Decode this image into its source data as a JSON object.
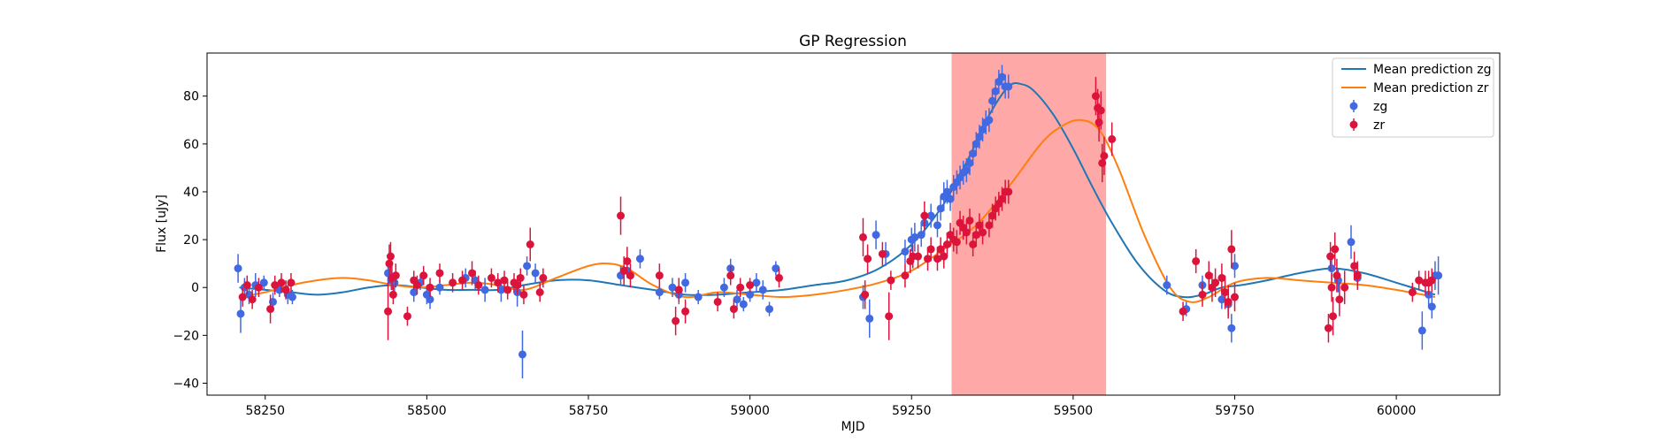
{
  "chart_data": {
    "type": "scatter",
    "title": "GP Regression",
    "xlabel": "MJD",
    "ylabel": "Flux [uJy]",
    "xlim": [
      58160,
      60160
    ],
    "ylim": [
      -45,
      98
    ],
    "xticks": [
      58250,
      58500,
      58750,
      59000,
      59250,
      59500,
      59750,
      60000
    ],
    "yticks": [
      -40,
      -20,
      0,
      20,
      40,
      60,
      80
    ],
    "grid": false,
    "legend_position": "top-right",
    "shaded_region": {
      "x_start": 59312,
      "x_end": 59551,
      "color": "#ff9999"
    },
    "series": [
      {
        "name": "Mean prediction zg",
        "kind": "line",
        "color": "#1f77b4",
        "x": [
          58210,
          58250,
          58290,
          58330,
          58370,
          58410,
          58450,
          58490,
          58530,
          58570,
          58610,
          58650,
          58700,
          58750,
          58800,
          58850,
          58900,
          58950,
          59000,
          59050,
          59100,
          59150,
          59200,
          59250,
          59300,
          59340,
          59370,
          59400,
          59420,
          59440,
          59470,
          59500,
          59530,
          59560,
          59600,
          59640,
          59670,
          59700,
          59730,
          59760,
          59800,
          59850,
          59900,
          59950,
          60000,
          60060
        ],
        "y": [
          0,
          -1,
          -2,
          -3,
          -2,
          0,
          1,
          0,
          -1,
          -1,
          -1,
          1,
          3,
          3,
          1,
          -1,
          -3,
          -3,
          -2,
          -1,
          1,
          3,
          8,
          18,
          35,
          55,
          72,
          84,
          85,
          82,
          72,
          58,
          42,
          27,
          10,
          -1,
          -4,
          -3,
          0,
          1,
          3,
          6,
          8,
          6,
          2,
          -3
        ]
      },
      {
        "name": "Mean prediction zr",
        "kind": "line",
        "color": "#ff7f0e",
        "x": [
          58210,
          58250,
          58290,
          58330,
          58370,
          58410,
          58450,
          58490,
          58530,
          58570,
          58610,
          58650,
          58700,
          58750,
          58780,
          58810,
          58850,
          58900,
          58950,
          59000,
          59050,
          59100,
          59150,
          59200,
          59250,
          59300,
          59350,
          59400,
          59450,
          59480,
          59510,
          59540,
          59570,
          59610,
          59650,
          59680,
          59710,
          59750,
          59800,
          59850,
          59900,
          59950,
          60000,
          60060
        ],
        "y": [
          -4,
          -2,
          1,
          3,
          4,
          3,
          1,
          0,
          1,
          2,
          1,
          -1,
          4,
          9,
          10,
          8,
          1,
          -4,
          -2,
          -3,
          -4,
          -3,
          -1,
          2,
          7,
          16,
          26,
          42,
          60,
          67,
          70,
          66,
          50,
          22,
          0,
          -6,
          -4,
          2,
          4,
          3,
          2,
          1,
          -1,
          -4
        ]
      },
      {
        "name": "zg",
        "kind": "errorbar",
        "color": "#4169e1",
        "x": [
          58208,
          58212,
          58218,
          58225,
          58235,
          58248,
          58262,
          58272,
          58285,
          58292,
          58440,
          58445,
          58450,
          58480,
          58490,
          58500,
          58505,
          58520,
          58560,
          58575,
          58590,
          58615,
          58640,
          58648,
          58655,
          58668,
          58800,
          58810,
          58830,
          58860,
          58880,
          58890,
          58900,
          58920,
          58960,
          58970,
          58980,
          58990,
          59000,
          59010,
          59020,
          59030,
          59040,
          59175,
          59185,
          59195,
          59210,
          59240,
          59250,
          59255,
          59265,
          59270,
          59280,
          59290,
          59295,
          59300,
          59305,
          59310,
          59315,
          59320,
          59325,
          59330,
          59335,
          59340,
          59345,
          59350,
          59355,
          59360,
          59365,
          59370,
          59375,
          59380,
          59385,
          59390,
          59395,
          59400,
          59645,
          59675,
          59700,
          59730,
          59740,
          59745,
          59750,
          59900,
          59910,
          59930,
          59940,
          60040,
          60050,
          60055,
          60060,
          60065
        ],
        "y": [
          8,
          -11,
          0,
          -3,
          1,
          2,
          -6,
          -1,
          -3,
          -4,
          6,
          3,
          2,
          -2,
          2,
          -3,
          -5,
          0,
          4,
          3,
          -1,
          -1,
          -2,
          -28,
          9,
          6,
          5,
          7,
          12,
          -2,
          0,
          -3,
          2,
          -4,
          0,
          8,
          -5,
          -7,
          -3,
          2,
          -1,
          -9,
          8,
          -4,
          -13,
          22,
          14,
          15,
          20,
          21,
          22,
          27,
          30,
          26,
          33,
          38,
          40,
          37,
          42,
          44,
          46,
          48,
          49,
          52,
          56,
          60,
          63,
          66,
          69,
          70,
          78,
          82,
          86,
          88,
          84,
          84,
          1,
          -9,
          1,
          -5,
          -7,
          -17,
          9,
          8,
          3,
          19,
          4,
          -18,
          -3,
          -8,
          5,
          5
        ],
        "yerr": [
          6,
          8,
          4,
          4,
          5,
          3,
          4,
          3,
          4,
          3,
          5,
          4,
          4,
          4,
          3,
          4,
          4,
          3,
          4,
          4,
          5,
          5,
          6,
          10,
          4,
          4,
          4,
          3,
          4,
          3,
          4,
          4,
          4,
          3,
          4,
          4,
          4,
          3,
          3,
          4,
          4,
          3,
          3,
          5,
          8,
          6,
          5,
          5,
          5,
          6,
          5,
          5,
          5,
          5,
          5,
          6,
          5,
          5,
          5,
          5,
          5,
          5,
          5,
          5,
          5,
          5,
          5,
          5,
          5,
          5,
          5,
          5,
          5,
          5,
          5,
          5,
          4,
          3,
          4,
          4,
          5,
          6,
          5,
          5,
          5,
          7,
          4,
          8,
          5,
          5,
          6,
          8
        ]
      },
      {
        "name": "zr",
        "kind": "errorbar",
        "color": "#dc143c",
        "x": [
          58215,
          58222,
          58230,
          58240,
          58258,
          58265,
          58275,
          58282,
          58290,
          58440,
          58442,
          58444,
          58446,
          58448,
          58452,
          58470,
          58480,
          58485,
          58495,
          58505,
          58520,
          58540,
          58555,
          58570,
          58580,
          58600,
          58610,
          58620,
          58625,
          58635,
          58640,
          58645,
          58650,
          58660,
          58675,
          58680,
          58800,
          58805,
          58810,
          58815,
          58860,
          58885,
          58890,
          58900,
          58950,
          58970,
          58975,
          58985,
          59000,
          59045,
          59175,
          59178,
          59182,
          59205,
          59215,
          59218,
          59240,
          59248,
          59252,
          59260,
          59270,
          59275,
          59280,
          59290,
          59295,
          59300,
          59305,
          59310,
          59315,
          59320,
          59325,
          59330,
          59335,
          59340,
          59345,
          59350,
          59355,
          59360,
          59370,
          59375,
          59380,
          59385,
          59390,
          59395,
          59400,
          59535,
          59538,
          59540,
          59543,
          59545,
          59548,
          59560,
          59670,
          59690,
          59700,
          59710,
          59715,
          59720,
          59730,
          59735,
          59740,
          59745,
          59750,
          59895,
          59898,
          59900,
          59902,
          59905,
          59908,
          59912,
          59920,
          59935,
          59940,
          60025,
          60035,
          60045,
          60050,
          60055
        ],
        "y": [
          -4,
          1,
          -5,
          0,
          -9,
          1,
          2,
          -1,
          2,
          -10,
          10,
          13,
          4,
          -3,
          5,
          -12,
          3,
          1,
          5,
          0,
          6,
          2,
          3,
          6,
          1,
          4,
          2,
          3,
          -1,
          2,
          1,
          4,
          -3,
          18,
          -2,
          4,
          30,
          7,
          11,
          5,
          5,
          -14,
          -1,
          -10,
          -6,
          5,
          -9,
          0,
          1,
          4,
          21,
          -3,
          12,
          14,
          -12,
          3,
          5,
          11,
          13,
          13,
          30,
          12,
          16,
          12,
          16,
          13,
          18,
          22,
          20,
          19,
          27,
          25,
          23,
          28,
          18,
          22,
          26,
          23,
          26,
          30,
          33,
          35,
          37,
          40,
          40,
          80,
          75,
          69,
          74,
          52,
          55,
          62,
          -10,
          11,
          -3,
          5,
          0,
          2,
          4,
          -2,
          -6,
          16,
          -4,
          -17,
          13,
          0,
          -12,
          16,
          5,
          -5,
          0,
          9,
          5,
          -2,
          3,
          2,
          2,
          3
        ],
        "yerr": [
          4,
          4,
          4,
          4,
          6,
          4,
          4,
          4,
          4,
          12,
          8,
          6,
          5,
          4,
          5,
          4,
          4,
          4,
          4,
          4,
          4,
          4,
          4,
          5,
          4,
          4,
          4,
          4,
          4,
          4,
          4,
          4,
          4,
          7,
          4,
          4,
          8,
          6,
          6,
          5,
          5,
          6,
          5,
          5,
          4,
          4,
          4,
          4,
          3,
          4,
          8,
          6,
          6,
          5,
          10,
          4,
          5,
          5,
          5,
          5,
          6,
          5,
          5,
          5,
          5,
          5,
          5,
          5,
          5,
          5,
          5,
          5,
          5,
          5,
          5,
          5,
          5,
          5,
          5,
          5,
          5,
          5,
          5,
          5,
          5,
          8,
          8,
          8,
          8,
          8,
          8,
          7,
          4,
          5,
          5,
          6,
          6,
          6,
          6,
          7,
          7,
          8,
          6,
          6,
          6,
          6,
          8,
          7,
          7,
          7,
          7,
          6,
          6,
          4,
          4,
          5,
          5,
          5
        ]
      }
    ]
  }
}
